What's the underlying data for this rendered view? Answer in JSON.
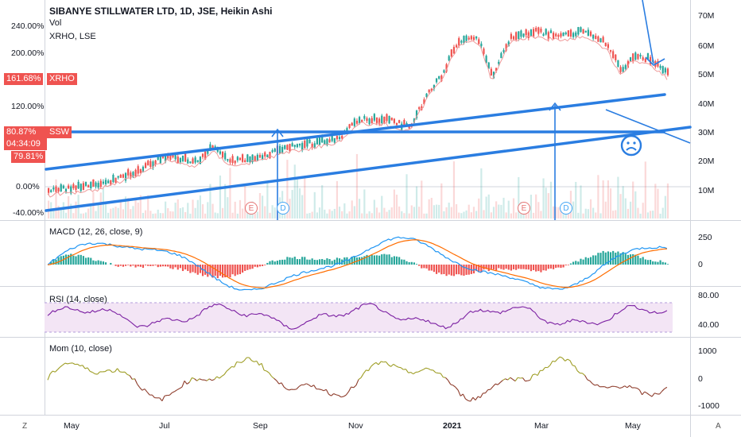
{
  "header": {
    "title": "SIBANYE STILLWATER LTD, 1D, JSE, Heikin Ashi",
    "vol_label": "Vol",
    "compare_label": "XRHO, LSE"
  },
  "price_pane": {
    "left_percent_labels": [
      "240.00%",
      "200.00%",
      "120.00%",
      "0.00%",
      "-40.00%"
    ],
    "right_volume_labels": [
      "70M",
      "60M",
      "50M",
      "40M",
      "30M",
      "20M",
      "10M"
    ],
    "tags": {
      "xrho_value": "161.68%",
      "xrho_name": "XRHO",
      "ssw_value": "80.87%",
      "ssw_countdown": "04:34:09",
      "ssw_name": "SSW",
      "ssw_low": "79.81%"
    },
    "event_badges": [
      "E",
      "D",
      "E",
      "D"
    ]
  },
  "macd_pane": {
    "label": "MACD (12, 26, close, 9)",
    "right_labels": [
      "250",
      "0"
    ]
  },
  "rsi_pane": {
    "label": "RSI (14, close)",
    "right_labels": [
      "80.00",
      "40.00"
    ]
  },
  "mom_pane": {
    "label": "Mom (10, close)",
    "right_labels": [
      "1000",
      "0",
      "-1000"
    ]
  },
  "time_axis": {
    "labels": [
      "May",
      "Jul",
      "Sep",
      "Nov",
      "2021",
      "Mar",
      "May"
    ]
  },
  "corners": {
    "left": "Z",
    "right": "A"
  },
  "colors": {
    "up": "#26a69a",
    "down": "#ef5350",
    "trendline": "#2a7de1",
    "macd": "#2196f3",
    "signal": "#ff6d00",
    "rsi": "#7b1fa2",
    "rsi_band": "#f3e5f5",
    "xrho_tag": "#ef5350",
    "ssw_tag": "#ef5350"
  },
  "icons": [
    "sad-face-icon",
    "arrow-icon",
    "trendline"
  ]
}
